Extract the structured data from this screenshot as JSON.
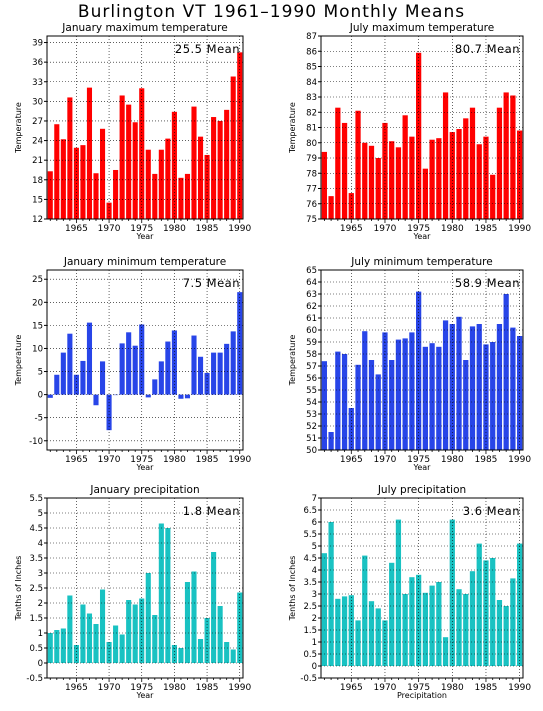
{
  "page": {
    "title": "Burlington VT   1961–1990 Monthly Means"
  },
  "chart_data": [
    {
      "type": "bar",
      "title": "January maximum temperature",
      "mean_label": "25.5 Mean",
      "xlabel": "Year",
      "ylabel": "Temperature",
      "color": "#ff0000",
      "x": [
        1961,
        1962,
        1963,
        1964,
        1965,
        1966,
        1967,
        1968,
        1969,
        1970,
        1971,
        1972,
        1973,
        1974,
        1975,
        1976,
        1977,
        1978,
        1979,
        1980,
        1981,
        1982,
        1983,
        1984,
        1985,
        1986,
        1987,
        1988,
        1989,
        1990
      ],
      "values": [
        19.3,
        26.5,
        24.2,
        30.6,
        22.9,
        23.3,
        32.1,
        19.0,
        25.8,
        14.5,
        19.5,
        30.9,
        29.5,
        26.8,
        32.0,
        22.6,
        18.9,
        22.6,
        24.3,
        28.4,
        18.3,
        18.9,
        29.2,
        24.6,
        21.8,
        27.6,
        27.0,
        28.7,
        33.8,
        37.5
      ],
      "ylim": [
        12,
        40
      ],
      "yticks": [
        12,
        15,
        18,
        21,
        24,
        27,
        30,
        33,
        36,
        39
      ],
      "xticks": [
        1965,
        1970,
        1975,
        1980,
        1985,
        1990
      ],
      "grid": true
    },
    {
      "type": "bar",
      "title": "July maximum temperature",
      "mean_label": "80.7 Mean",
      "xlabel": "Year",
      "ylabel": "Temperature",
      "color": "#ff0000",
      "x": [
        1961,
        1962,
        1963,
        1964,
        1965,
        1966,
        1967,
        1968,
        1969,
        1970,
        1971,
        1972,
        1973,
        1974,
        1975,
        1976,
        1977,
        1978,
        1979,
        1980,
        1981,
        1982,
        1983,
        1984,
        1985,
        1986,
        1987,
        1988,
        1989,
        1990
      ],
      "values": [
        79.4,
        76.5,
        82.3,
        81.3,
        76.7,
        82.1,
        80.0,
        79.8,
        79.0,
        81.3,
        80.1,
        79.7,
        81.8,
        80.4,
        85.9,
        78.3,
        80.2,
        80.3,
        83.3,
        80.7,
        80.9,
        81.6,
        82.3,
        79.9,
        80.4,
        77.9,
        82.3,
        83.3,
        83.1,
        80.8
      ],
      "ylim": [
        75,
        87
      ],
      "yticks": [
        75,
        76,
        77,
        78,
        79,
        80,
        81,
        82,
        83,
        84,
        85,
        86,
        87
      ],
      "xticks": [
        1965,
        1970,
        1975,
        1980,
        1985,
        1990
      ],
      "grid": true
    },
    {
      "type": "bar",
      "title": "January minimum temperature",
      "mean_label": "7.5 Mean",
      "xlabel": "Year",
      "ylabel": "Temperature",
      "color": "#2845e8",
      "x": [
        1961,
        1962,
        1963,
        1964,
        1965,
        1966,
        1967,
        1968,
        1969,
        1970,
        1971,
        1972,
        1973,
        1974,
        1975,
        1976,
        1977,
        1978,
        1979,
        1980,
        1981,
        1982,
        1983,
        1984,
        1985,
        1986,
        1987,
        1988,
        1989,
        1990
      ],
      "values": [
        -0.7,
        4.3,
        9.1,
        13.2,
        4.3,
        7.3,
        15.6,
        -2.3,
        7.2,
        -7.7,
        0.0,
        11.1,
        13.5,
        10.6,
        15.2,
        -0.6,
        3.3,
        7.2,
        11.5,
        13.9,
        -0.9,
        -0.8,
        12.8,
        8.2,
        4.7,
        9.1,
        9.1,
        11.0,
        13.7,
        22.2
      ],
      "ylim": [
        -12,
        27
      ],
      "yticks": [
        -10,
        -5,
        0,
        5,
        10,
        15,
        20,
        25
      ],
      "xticks": [
        1965,
        1970,
        1975,
        1980,
        1985,
        1990
      ],
      "grid": true
    },
    {
      "type": "bar",
      "title": "July minimum temperature",
      "mean_label": "58.9 Mean",
      "xlabel": "Year",
      "ylabel": "Temperature",
      "color": "#2845e8",
      "x": [
        1961,
        1962,
        1963,
        1964,
        1965,
        1966,
        1967,
        1968,
        1969,
        1970,
        1971,
        1972,
        1973,
        1974,
        1975,
        1976,
        1977,
        1978,
        1979,
        1980,
        1981,
        1982,
        1983,
        1984,
        1985,
        1986,
        1987,
        1988,
        1989,
        1990
      ],
      "values": [
        57.4,
        51.5,
        58.2,
        58.0,
        53.5,
        57.1,
        59.9,
        57.5,
        56.3,
        59.8,
        57.5,
        59.2,
        59.3,
        59.8,
        63.2,
        58.6,
        58.9,
        58.6,
        60.8,
        60.5,
        61.1,
        57.5,
        60.3,
        60.5,
        58.8,
        59.0,
        60.5,
        63.0,
        60.2,
        59.5
      ],
      "ylim": [
        50,
        65
      ],
      "yticks": [
        50,
        51,
        52,
        53,
        54,
        55,
        56,
        57,
        58,
        59,
        60,
        61,
        62,
        63,
        64,
        65
      ],
      "xticks": [
        1965,
        1970,
        1975,
        1980,
        1985,
        1990
      ],
      "grid": true
    },
    {
      "type": "bar",
      "title": "January precipitation",
      "mean_label": "1.8 Mean",
      "xlabel": "Year",
      "ylabel": "Tenths of Inches",
      "color": "#19c2c2",
      "x": [
        1961,
        1962,
        1963,
        1964,
        1965,
        1966,
        1967,
        1968,
        1969,
        1970,
        1971,
        1972,
        1973,
        1974,
        1975,
        1976,
        1977,
        1978,
        1979,
        1980,
        1981,
        1982,
        1983,
        1984,
        1985,
        1986,
        1987,
        1988,
        1989,
        1990
      ],
      "values": [
        1.0,
        1.1,
        1.15,
        2.25,
        0.6,
        1.95,
        1.65,
        1.3,
        2.45,
        0.7,
        1.25,
        0.95,
        2.1,
        1.95,
        2.15,
        3.0,
        1.6,
        4.65,
        4.5,
        0.6,
        0.5,
        2.7,
        3.05,
        0.8,
        1.5,
        3.7,
        1.9,
        0.7,
        0.45,
        2.35
      ],
      "ylim": [
        -0.5,
        5.5
      ],
      "yticks": [
        -0.5,
        0,
        0.5,
        1,
        1.5,
        2,
        2.5,
        3,
        3.5,
        4,
        4.5,
        5,
        5.5
      ],
      "xticks": [
        1965,
        1970,
        1975,
        1980,
        1985,
        1990
      ],
      "grid": true
    },
    {
      "type": "bar",
      "title": "July precipitation",
      "mean_label": "3.6 Mean",
      "xlabel": "Precipitation",
      "ylabel": "Tenths of Inches",
      "color": "#19c2c2",
      "x": [
        1961,
        1962,
        1963,
        1964,
        1965,
        1966,
        1967,
        1968,
        1969,
        1970,
        1971,
        1972,
        1973,
        1974,
        1975,
        1976,
        1977,
        1978,
        1979,
        1980,
        1981,
        1982,
        1983,
        1984,
        1985,
        1986,
        1987,
        1988,
        1989,
        1990
      ],
      "values": [
        4.7,
        6.0,
        2.8,
        2.9,
        2.95,
        1.9,
        4.6,
        2.7,
        2.4,
        1.9,
        4.3,
        6.1,
        3.0,
        3.7,
        3.8,
        3.05,
        3.35,
        3.5,
        1.2,
        6.1,
        3.2,
        3.0,
        3.95,
        5.1,
        4.4,
        4.5,
        2.75,
        2.5,
        3.65,
        5.1
      ],
      "ylim": [
        -0.5,
        7
      ],
      "yticks": [
        -0.5,
        0,
        0.5,
        1,
        1.5,
        2,
        2.5,
        3,
        3.5,
        4,
        4.5,
        5,
        5.5,
        6,
        6.5,
        7
      ],
      "xticks": [
        1965,
        1970,
        1975,
        1980,
        1985,
        1990
      ],
      "grid": true
    }
  ]
}
